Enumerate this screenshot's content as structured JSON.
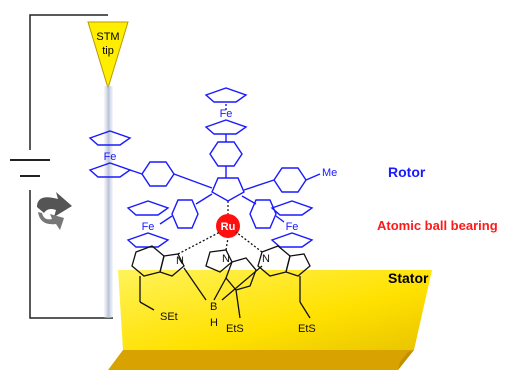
{
  "tip": {
    "line1": "STM",
    "line2": "tip"
  },
  "labels": {
    "rotor": "Rotor",
    "ball_bearing": "Atomic ball bearing",
    "stator": "Stator"
  },
  "atoms": {
    "fe": "Fe",
    "ru": "Ru",
    "me": "Me",
    "b": "B",
    "h": "H",
    "n": "N",
    "set": "SEt",
    "ets": "EtS"
  },
  "colors": {
    "rotor": "#1a1aff",
    "ball_bearing": "#ff1a1a",
    "stator": "#000000",
    "tip_fill": "#ffee00",
    "surface": "#ffe600",
    "ru": "#ff1010",
    "circuit": "#222222"
  },
  "icons": [
    "rotation-arrow-icon",
    "battery-icon",
    "stm-tip-icon"
  ]
}
